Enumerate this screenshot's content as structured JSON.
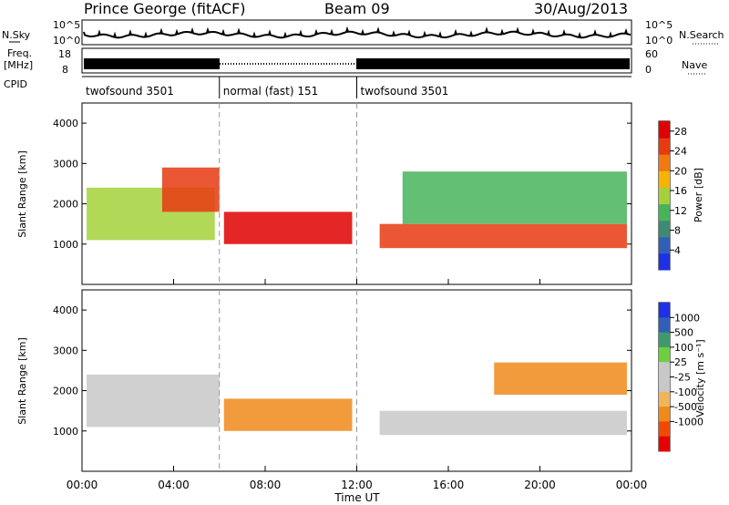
{
  "header": {
    "station": "Prince George (fitACF)",
    "beam": "Beam 09",
    "date": "30/Aug/2013"
  },
  "panels_labels": {
    "nsky": "N.Sky",
    "nsky_ticks": [
      "10^5",
      "10^0"
    ],
    "nsearch": "N.Search",
    "nsearch_ticks": [
      "10^5",
      "10^0"
    ],
    "freq_line1": "Freq.",
    "freq_line2": "[MHz]",
    "freq_ticks": [
      "18",
      "8"
    ],
    "nave": "Nave",
    "nave_ticks": [
      "60",
      "0"
    ],
    "cpid": "CPID"
  },
  "cpid_segments": [
    {
      "label": "twofsound 3501",
      "start_hour": 0,
      "end_hour": 6
    },
    {
      "label": "normal (fast) 151",
      "start_hour": 6,
      "end_hour": 12
    },
    {
      "label": "twofsound 3501",
      "start_hour": 12,
      "end_hour": 24
    }
  ],
  "colors": {
    "power": [
      "#1f2fe6",
      "#2f5fb8",
      "#3e8a74",
      "#48b45a",
      "#a4d13a",
      "#f4b400",
      "#f07a10",
      "#e83a10",
      "#e00000"
    ],
    "velocity": [
      "#e80000",
      "#f04a00",
      "#f08a1a",
      "#f2b45a",
      "#c8c8c8",
      "#c8c8c8",
      "#6bd040",
      "#3e9a6a",
      "#2f5fb8",
      "#1f2fe6"
    ]
  },
  "chart_data": [
    {
      "type": "heatmap",
      "quantity": "power",
      "xlabel": "",
      "ylabel": "Slant Range [km]",
      "x_range_hours": [
        0,
        24
      ],
      "ylim": [
        0,
        4500
      ],
      "yticks": [
        "1000",
        "2000",
        "3000",
        "4000"
      ],
      "colorbar_label": "Power [dB]",
      "colorbar_ticks": [
        "4",
        "8",
        "12",
        "16",
        "20",
        "24",
        "28"
      ],
      "colorbar_range": [
        0,
        30
      ],
      "bands": [
        {
          "start_hour": 0.2,
          "end_hour": 5.8,
          "range_start_km": 1100,
          "range_end_km": 2400,
          "value_db": 16
        },
        {
          "start_hour": 3.5,
          "end_hour": 6.0,
          "range_start_km": 1800,
          "range_end_km": 2900,
          "value_db": 24
        },
        {
          "start_hour": 6.2,
          "end_hour": 11.8,
          "range_start_km": 1000,
          "range_end_km": 1800,
          "value_db": 28
        },
        {
          "start_hour": 13.0,
          "end_hour": 23.8,
          "range_start_km": 900,
          "range_end_km": 1500,
          "value_db": 24
        },
        {
          "start_hour": 14.0,
          "end_hour": 23.8,
          "range_start_km": 1500,
          "range_end_km": 2800,
          "value_db": 10
        }
      ]
    },
    {
      "type": "heatmap",
      "quantity": "velocity",
      "xlabel": "Time UT",
      "ylabel": "Slant Range [km]",
      "x_range_hours": [
        0,
        24
      ],
      "xticks": [
        "00:00",
        "04:00",
        "08:00",
        "12:00",
        "16:00",
        "20:00",
        "00:00"
      ],
      "ylim": [
        0,
        4500
      ],
      "yticks": [
        "1000",
        "2000",
        "3000",
        "4000"
      ],
      "colorbar_label": "Velocity [m s⁻¹]",
      "colorbar_ticks": [
        "1000",
        "500",
        "100",
        "25",
        "-25",
        "-100",
        "-500",
        "-1000"
      ],
      "bands": [
        {
          "start_hour": 0.2,
          "end_hour": 6.0,
          "range_start_km": 1100,
          "range_end_km": 2400,
          "value_ms": 0
        },
        {
          "start_hour": 6.2,
          "end_hour": 11.8,
          "range_start_km": 1000,
          "range_end_km": 1800,
          "value_ms": -300
        },
        {
          "start_hour": 13.0,
          "end_hour": 23.8,
          "range_start_km": 900,
          "range_end_km": 1500,
          "value_ms": 0
        },
        {
          "start_hour": 18.0,
          "end_hour": 23.8,
          "range_start_km": 1900,
          "range_end_km": 2700,
          "value_ms": -200
        }
      ]
    }
  ]
}
